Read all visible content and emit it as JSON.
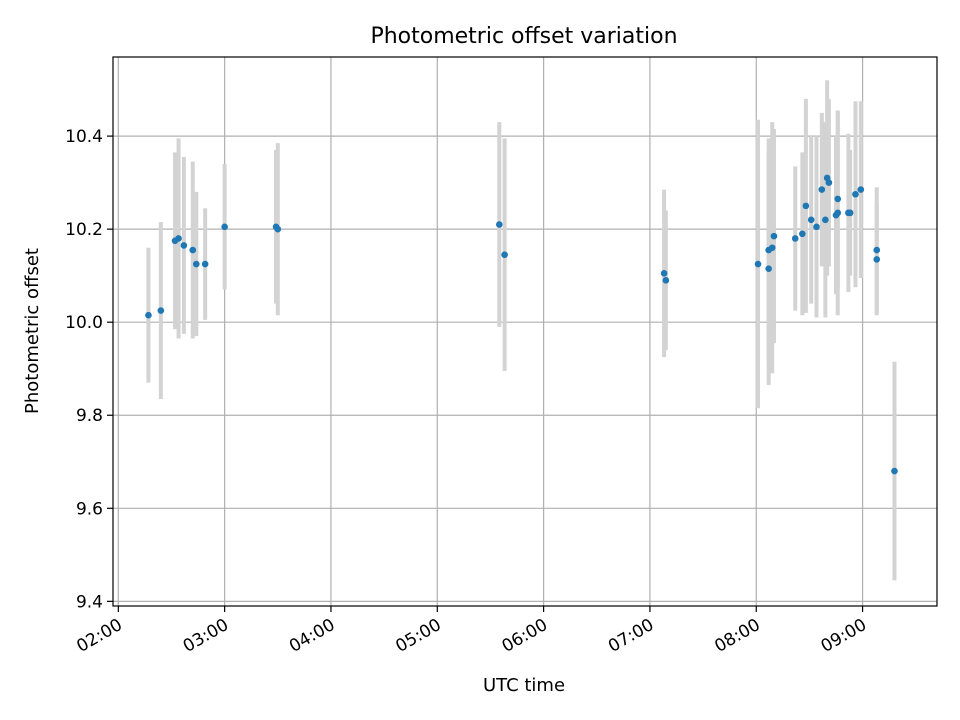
{
  "chart_data": {
    "type": "scatter",
    "title": "Photometric offset variation",
    "xlabel": "UTC time",
    "ylabel": "Photometric offset",
    "x_tick_labels": [
      "02:00",
      "03:00",
      "04:00",
      "05:00",
      "06:00",
      "07:00",
      "08:00",
      "09:00"
    ],
    "y_tick_labels": [
      "9.4",
      "9.6",
      "9.8",
      "10.0",
      "10.2",
      "10.4"
    ],
    "xlim": [
      "01:57",
      "09:42"
    ],
    "ylim": [
      9.39,
      10.57
    ],
    "grid": true,
    "colors": {
      "point": "#1f77b4",
      "errorbar": "#d3d3d3",
      "grid": "#b0b0b0"
    },
    "points": [
      {
        "t": "02:17",
        "y": 10.015,
        "err": 0.145
      },
      {
        "t": "02:24",
        "y": 10.025,
        "err": 0.19
      },
      {
        "t": "02:32",
        "y": 10.175,
        "err": 0.19
      },
      {
        "t": "02:34",
        "y": 10.18,
        "err": 0.215
      },
      {
        "t": "02:37",
        "y": 10.165,
        "err": 0.19
      },
      {
        "t": "02:42",
        "y": 10.155,
        "err": 0.19
      },
      {
        "t": "02:44",
        "y": 10.125,
        "err": 0.155
      },
      {
        "t": "02:49",
        "y": 10.125,
        "err": 0.12
      },
      {
        "t": "03:00",
        "y": 10.205,
        "err": 0.135
      },
      {
        "t": "03:29",
        "y": 10.205,
        "err": 0.165
      },
      {
        "t": "03:30",
        "y": 10.2,
        "err": 0.185
      },
      {
        "t": "05:35",
        "y": 10.21,
        "err": 0.22
      },
      {
        "t": "05:38",
        "y": 10.145,
        "err": 0.25
      },
      {
        "t": "07:08",
        "y": 10.105,
        "err": 0.18
      },
      {
        "t": "07:09",
        "y": 10.09,
        "err": 0.15
      },
      {
        "t": "08:01",
        "y": 10.125,
        "err": 0.31
      },
      {
        "t": "08:07",
        "y": 10.115,
        "err": 0.25
      },
      {
        "t": "08:07",
        "y": 10.155,
        "err": 0.24
      },
      {
        "t": "08:09",
        "y": 10.16,
        "err": 0.27
      },
      {
        "t": "08:10",
        "y": 10.185,
        "err": 0.23
      },
      {
        "t": "08:22",
        "y": 10.18,
        "err": 0.155
      },
      {
        "t": "08:26",
        "y": 10.19,
        "err": 0.175
      },
      {
        "t": "08:28",
        "y": 10.25,
        "err": 0.23
      },
      {
        "t": "08:31",
        "y": 10.22,
        "err": 0.18
      },
      {
        "t": "08:34",
        "y": 10.205,
        "err": 0.195
      },
      {
        "t": "08:37",
        "y": 10.285,
        "err": 0.165
      },
      {
        "t": "08:39",
        "y": 10.22,
        "err": 0.21
      },
      {
        "t": "08:40",
        "y": 10.31,
        "err": 0.21
      },
      {
        "t": "08:41",
        "y": 10.3,
        "err": 0.18
      },
      {
        "t": "08:45",
        "y": 10.23,
        "err": 0.17
      },
      {
        "t": "08:46",
        "y": 10.235,
        "err": 0.22
      },
      {
        "t": "08:46",
        "y": 10.265,
        "err": 0.19
      },
      {
        "t": "08:52",
        "y": 10.235,
        "err": 0.17
      },
      {
        "t": "08:53",
        "y": 10.235,
        "err": 0.135
      },
      {
        "t": "08:56",
        "y": 10.275,
        "err": 0.2
      },
      {
        "t": "08:59",
        "y": 10.285,
        "err": 0.19
      },
      {
        "t": "09:08",
        "y": 10.135,
        "err": 0.12
      },
      {
        "t": "09:08",
        "y": 10.155,
        "err": 0.135
      },
      {
        "t": "09:18",
        "y": 9.68,
        "err": 0.235
      }
    ]
  }
}
